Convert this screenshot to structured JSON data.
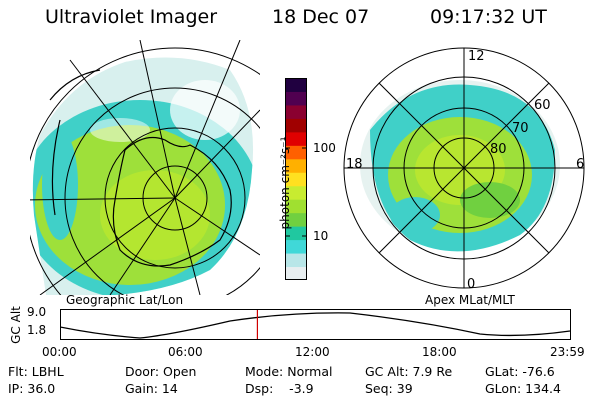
{
  "header": {
    "instrument": "Ultraviolet Imager",
    "date": "18 Dec 07",
    "time": "09:17:32 UT"
  },
  "colorbar": {
    "unit_label": "photon cm⁻²s⁻¹",
    "ticks": [
      "100",
      "10"
    ],
    "colors": [
      "#e8eef0",
      "#b8e6e8",
      "#40d8d8",
      "#20c8a0",
      "#70d040",
      "#a0e030",
      "#c8ec30",
      "#ffe020",
      "#ffb000",
      "#ff6000",
      "#e00000",
      "#a00000",
      "#8a0030",
      "#500050",
      "#200040"
    ]
  },
  "left_map": {
    "caption": "Geographic Lat/Lon"
  },
  "right_map": {
    "caption": "Apex MLat/MLT",
    "mlt_labels": {
      "top": "12",
      "left": "18",
      "right": "6",
      "bottom": "0"
    },
    "lat_labels": [
      "60",
      "70",
      "80"
    ]
  },
  "altitude_plot": {
    "ylabel": "GC Alt",
    "y_ticks": [
      "9.0",
      "1.8"
    ],
    "x_ticks": [
      "00:00",
      "06:00",
      "12:00",
      "18:00",
      "23:59"
    ],
    "current_time_hours": 9.29,
    "marker_color": "#d00000"
  },
  "footer": {
    "row1": [
      "Flt: LBHL",
      "Door: Open",
      "Mode: Normal",
      "GC Alt: 7.9 Re",
      "GLat: -76.6"
    ],
    "row2": [
      "IP: 36.0",
      "Gain: 14",
      "Dsp:    -3.9",
      "Seq: 39",
      "GLon: 134.4"
    ]
  }
}
